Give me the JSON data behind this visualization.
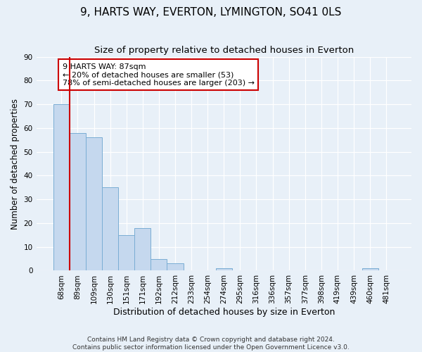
{
  "title": "9, HARTS WAY, EVERTON, LYMINGTON, SO41 0LS",
  "subtitle": "Size of property relative to detached houses in Everton",
  "xlabel": "Distribution of detached houses by size in Everton",
  "ylabel": "Number of detached properties",
  "categories": [
    "68sqm",
    "89sqm",
    "109sqm",
    "130sqm",
    "151sqm",
    "171sqm",
    "192sqm",
    "212sqm",
    "233sqm",
    "254sqm",
    "274sqm",
    "295sqm",
    "316sqm",
    "336sqm",
    "357sqm",
    "377sqm",
    "398sqm",
    "419sqm",
    "439sqm",
    "460sqm",
    "481sqm"
  ],
  "values": [
    70,
    58,
    56,
    35,
    15,
    18,
    5,
    3,
    0,
    0,
    1,
    0,
    0,
    0,
    0,
    0,
    0,
    0,
    0,
    1,
    0
  ],
  "bar_color": "#c5d8ee",
  "bar_edgecolor": "#7aadd4",
  "ylim": [
    0,
    90
  ],
  "yticks": [
    0,
    10,
    20,
    30,
    40,
    50,
    60,
    70,
    80,
    90
  ],
  "property_line_color": "#cc0000",
  "annotation_title": "9 HARTS WAY: 87sqm",
  "annotation_line1": "← 20% of detached houses are smaller (53)",
  "annotation_line2": "78% of semi-detached houses are larger (203) →",
  "annotation_box_color": "#cc0000",
  "footer1": "Contains HM Land Registry data © Crown copyright and database right 2024.",
  "footer2": "Contains public sector information licensed under the Open Government Licence v3.0.",
  "background_color": "#e8f0f8",
  "plot_bg_color": "#e8f0f8",
  "grid_color": "#ffffff",
  "title_fontsize": 11,
  "subtitle_fontsize": 9.5,
  "xlabel_fontsize": 9,
  "ylabel_fontsize": 8.5,
  "tick_fontsize": 7.5,
  "annotation_fontsize": 8,
  "footer_fontsize": 6.5
}
